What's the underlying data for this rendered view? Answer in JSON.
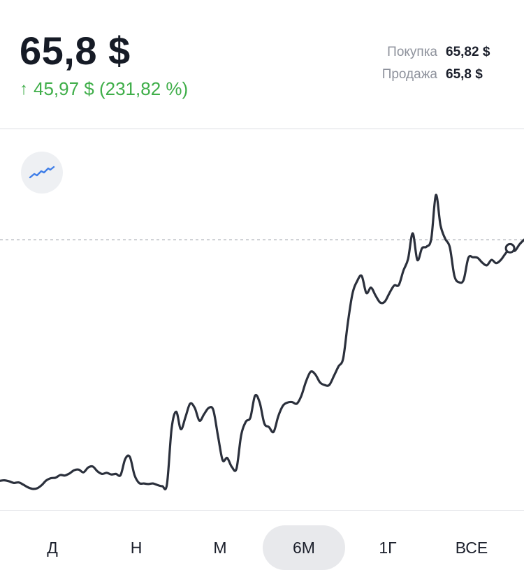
{
  "quote": {
    "price": "65,8 $",
    "change": "45,97 $ (231,82 %)",
    "change_arrow": "↑",
    "buy_label": "Покупка",
    "buy_value": "65,82 $",
    "sell_label": "Продажа",
    "sell_value": "65,8 $"
  },
  "chart_toggle_icon": "line-chart-icon",
  "periods": [
    "Д",
    "Н",
    "М",
    "6М",
    "1Г",
    "ВСЕ"
  ],
  "active_period": "6М",
  "colors": {
    "line": "#2b303c",
    "positive": "#3fae49",
    "icon_accent": "#3f7ee8",
    "reference_line": "#b9bcc2"
  },
  "chart_data": {
    "type": "line",
    "title": "",
    "xlabel": "",
    "ylabel": "",
    "ylim": [
      17,
      80
    ],
    "grid": false,
    "reference_value": 65.8,
    "series": [
      {
        "values": [
          20.5,
          20.6,
          20.4,
          20.1,
          20.2,
          19.8,
          19.3,
          19.0,
          19.1,
          19.7,
          20.6,
          21.0,
          21.1,
          21.6,
          21.5,
          21.9,
          22.5,
          22.6,
          22.1,
          23.0,
          23.2,
          22.3,
          21.8,
          22.0,
          21.7,
          21.8,
          21.6,
          24.6,
          25.0,
          21.6,
          20.1,
          20.0,
          19.9,
          20.0,
          19.7,
          19.5,
          19.8,
          30.3,
          33.5,
          30.2,
          32.5,
          35.0,
          34.2,
          31.8,
          33.0,
          34.2,
          33.8,
          29.0,
          24.4,
          24.8,
          23.1,
          22.8,
          29.0,
          31.6,
          32.4,
          36.5,
          35.2,
          31.3,
          30.6,
          29.7,
          32.6,
          34.6,
          35.2,
          35.3,
          35.0,
          36.5,
          39.2,
          41.0,
          40.5,
          39.0,
          38.5,
          38.5,
          40.2,
          42.0,
          43.5,
          50.1,
          55.6,
          58.0,
          59.0,
          55.8,
          56.8,
          55.3,
          54.0,
          54.2,
          55.8,
          57.2,
          57.3,
          60.0,
          62.2,
          67.0,
          62.0,
          64.2,
          64.5,
          66.0,
          74.2,
          68.5,
          66.0,
          64.4,
          59.0,
          57.8,
          58.3,
          62.4,
          62.5,
          62.4,
          61.5,
          61.0,
          62.0,
          61.4,
          62.0,
          63.2,
          64.2,
          63.7,
          64.9,
          65.8
        ]
      }
    ]
  }
}
